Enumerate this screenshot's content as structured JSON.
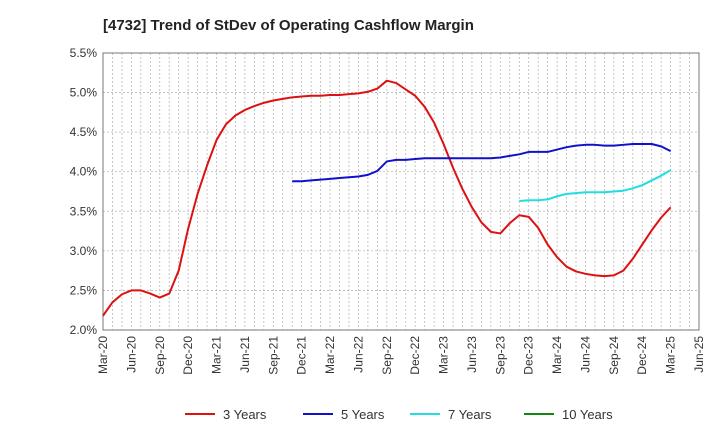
{
  "chart_data": {
    "type": "line",
    "title": "[4732]  Trend of StDev of Operating Cashflow Margin",
    "xlabel": "",
    "ylabel": "",
    "ylim": [
      2.0,
      5.5
    ],
    "y_ticks": [
      "2.0%",
      "2.5%",
      "3.0%",
      "3.5%",
      "4.0%",
      "4.5%",
      "5.0%",
      "5.5%"
    ],
    "x_ticks": [
      "Mar-20",
      "Jun-20",
      "Sep-20",
      "Dec-20",
      "Mar-21",
      "Jun-21",
      "Sep-21",
      "Dec-21",
      "Mar-22",
      "Jun-22",
      "Sep-22",
      "Dec-22",
      "Mar-23",
      "Jun-23",
      "Sep-23",
      "Dec-23",
      "Mar-24",
      "Jun-24",
      "Sep-24",
      "Dec-24",
      "Mar-25",
      "Jun-25"
    ],
    "x_unit": "month index from Mar-20",
    "grid": true,
    "legend_position": "bottom",
    "series": [
      {
        "name": "3 Years",
        "color": "#dd1111",
        "points": [
          [
            0,
            2.18
          ],
          [
            1,
            2.35
          ],
          [
            2,
            2.45
          ],
          [
            3,
            2.5
          ],
          [
            4,
            2.5
          ],
          [
            5,
            2.46
          ],
          [
            6,
            2.41
          ],
          [
            7,
            2.46
          ],
          [
            8,
            2.75
          ],
          [
            9,
            3.28
          ],
          [
            10,
            3.72
          ],
          [
            11,
            4.08
          ],
          [
            12,
            4.4
          ],
          [
            13,
            4.6
          ],
          [
            14,
            4.71
          ],
          [
            15,
            4.78
          ],
          [
            16,
            4.83
          ],
          [
            17,
            4.87
          ],
          [
            18,
            4.9
          ],
          [
            19,
            4.92
          ],
          [
            20,
            4.94
          ],
          [
            21,
            4.95
          ],
          [
            22,
            4.96
          ],
          [
            23,
            4.96
          ],
          [
            24,
            4.97
          ],
          [
            25,
            4.97
          ],
          [
            26,
            4.98
          ],
          [
            27,
            4.99
          ],
          [
            28,
            5.01
          ],
          [
            29,
            5.05
          ],
          [
            30,
            5.15
          ],
          [
            31,
            5.12
          ],
          [
            32,
            5.04
          ],
          [
            33,
            4.96
          ],
          [
            34,
            4.82
          ],
          [
            35,
            4.62
          ],
          [
            36,
            4.35
          ],
          [
            37,
            4.05
          ],
          [
            38,
            3.78
          ],
          [
            39,
            3.55
          ],
          [
            40,
            3.36
          ],
          [
            41,
            3.24
          ],
          [
            42,
            3.22
          ],
          [
            43,
            3.35
          ],
          [
            44,
            3.45
          ],
          [
            45,
            3.43
          ],
          [
            46,
            3.29
          ],
          [
            47,
            3.08
          ],
          [
            48,
            2.92
          ],
          [
            49,
            2.8
          ],
          [
            50,
            2.74
          ],
          [
            51,
            2.71
          ],
          [
            52,
            2.69
          ],
          [
            53,
            2.68
          ],
          [
            54,
            2.69
          ],
          [
            55,
            2.75
          ],
          [
            56,
            2.9
          ],
          [
            57,
            3.08
          ],
          [
            58,
            3.26
          ],
          [
            59,
            3.42
          ],
          [
            60,
            3.55
          ]
        ]
      },
      {
        "name": "5 Years",
        "color": "#1111cc",
        "points": [
          [
            20,
            3.88
          ],
          [
            21,
            3.88
          ],
          [
            22,
            3.89
          ],
          [
            23,
            3.9
          ],
          [
            24,
            3.91
          ],
          [
            25,
            3.92
          ],
          [
            26,
            3.93
          ],
          [
            27,
            3.94
          ],
          [
            28,
            3.96
          ],
          [
            29,
            4.01
          ],
          [
            30,
            4.13
          ],
          [
            31,
            4.15
          ],
          [
            32,
            4.15
          ],
          [
            33,
            4.16
          ],
          [
            34,
            4.17
          ],
          [
            35,
            4.17
          ],
          [
            36,
            4.17
          ],
          [
            37,
            4.17
          ],
          [
            38,
            4.17
          ],
          [
            39,
            4.17
          ],
          [
            40,
            4.17
          ],
          [
            41,
            4.17
          ],
          [
            42,
            4.18
          ],
          [
            43,
            4.2
          ],
          [
            44,
            4.22
          ],
          [
            45,
            4.25
          ],
          [
            46,
            4.25
          ],
          [
            47,
            4.25
          ],
          [
            48,
            4.28
          ],
          [
            49,
            4.31
          ],
          [
            50,
            4.33
          ],
          [
            51,
            4.34
          ],
          [
            52,
            4.34
          ],
          [
            53,
            4.33
          ],
          [
            54,
            4.33
          ],
          [
            55,
            4.34
          ],
          [
            56,
            4.35
          ],
          [
            57,
            4.35
          ],
          [
            58,
            4.35
          ],
          [
            59,
            4.32
          ],
          [
            60,
            4.26
          ]
        ]
      },
      {
        "name": "7 Years",
        "color": "#22dddd",
        "points": [
          [
            44,
            3.63
          ],
          [
            45,
            3.64
          ],
          [
            46,
            3.64
          ],
          [
            47,
            3.65
          ],
          [
            48,
            3.69
          ],
          [
            49,
            3.72
          ],
          [
            50,
            3.73
          ],
          [
            51,
            3.74
          ],
          [
            52,
            3.74
          ],
          [
            53,
            3.74
          ],
          [
            54,
            3.75
          ],
          [
            55,
            3.76
          ],
          [
            56,
            3.79
          ],
          [
            57,
            3.83
          ],
          [
            58,
            3.89
          ],
          [
            59,
            3.95
          ],
          [
            60,
            4.02
          ]
        ]
      },
      {
        "name": "10 Years",
        "color": "#118811",
        "points": []
      }
    ]
  }
}
